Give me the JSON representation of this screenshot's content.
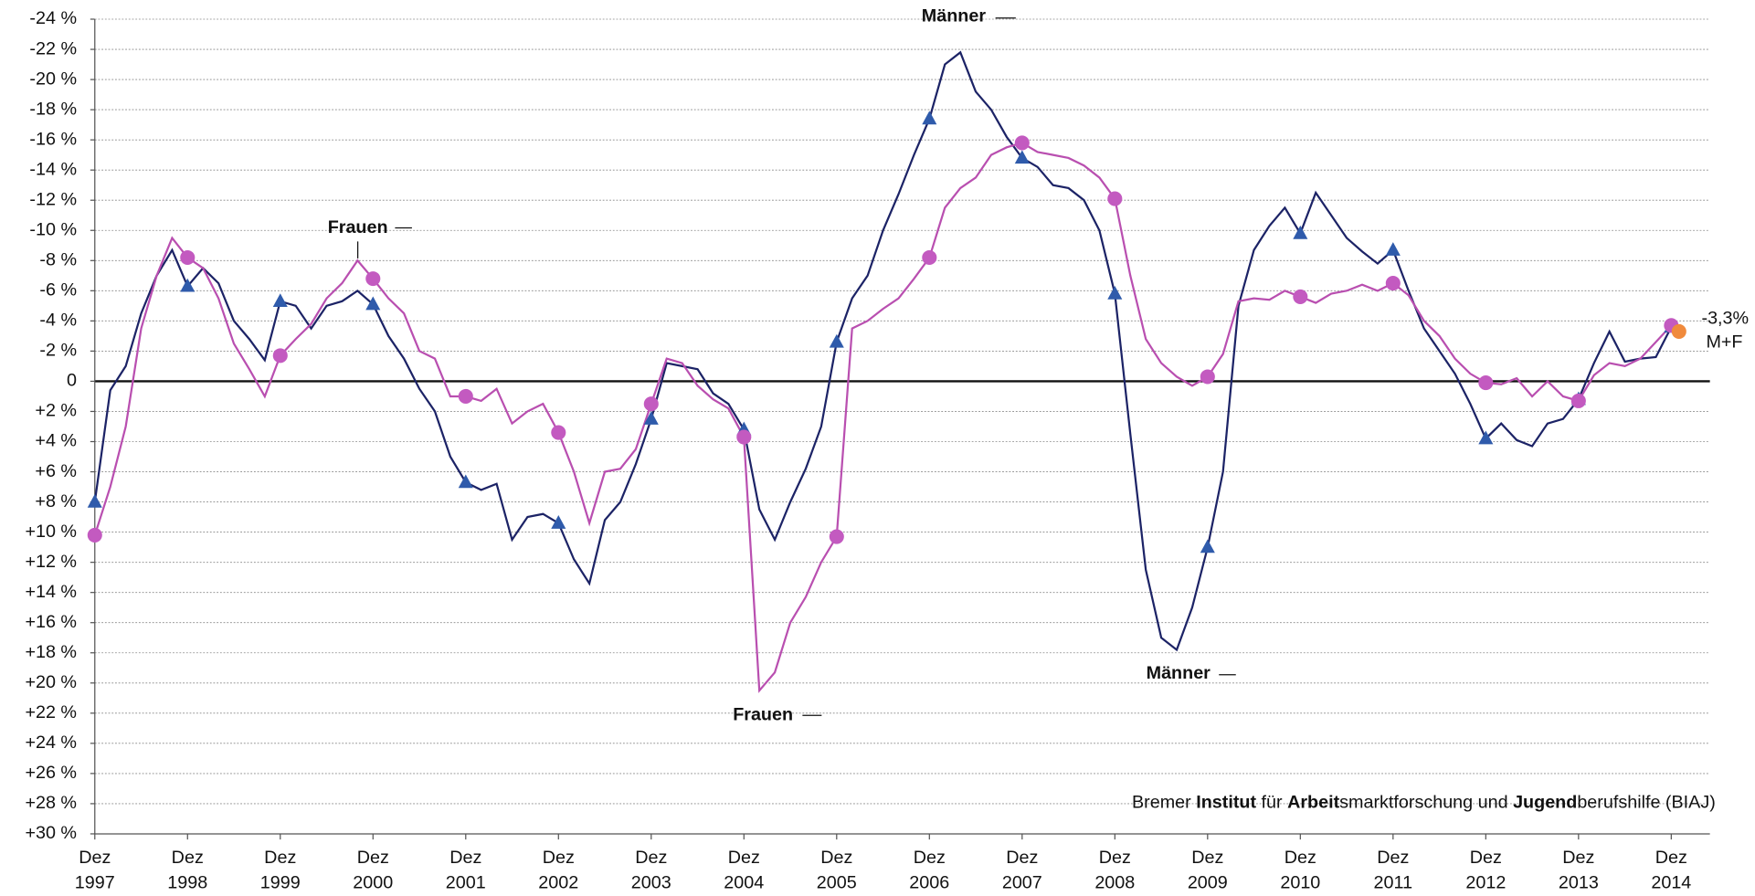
{
  "chart_data": {
    "type": "line",
    "y_inverted": true,
    "ylim": [
      -24,
      30
    ],
    "yticks": [
      {
        "value": -24,
        "label": "-24 %"
      },
      {
        "value": -22,
        "label": "-22 %"
      },
      {
        "value": -20,
        "label": "-20 %"
      },
      {
        "value": -18,
        "label": "-18 %"
      },
      {
        "value": -16,
        "label": "-16 %"
      },
      {
        "value": -14,
        "label": "-14 %"
      },
      {
        "value": -12,
        "label": "-12 %"
      },
      {
        "value": -10,
        "label": "-10 %"
      },
      {
        "value": -8,
        "label": "-8 %"
      },
      {
        "value": -6,
        "label": "-6 %"
      },
      {
        "value": -4,
        "label": "-4 %"
      },
      {
        "value": -2,
        "label": "-2 %"
      },
      0,
      {
        "value": 2,
        "label": "+2 %"
      },
      {
        "value": 4,
        "label": "+4 %"
      },
      {
        "value": 6,
        "label": "+6 %"
      },
      {
        "value": 8,
        "label": "+8 %"
      },
      {
        "value": 10,
        "label": "+10 %"
      },
      {
        "value": 12,
        "label": "+12 %"
      },
      {
        "value": 14,
        "label": "+14 %"
      },
      {
        "value": 16,
        "label": "+16 %"
      },
      {
        "value": 18,
        "label": "+18 %"
      },
      {
        "value": 20,
        "label": "+20 %"
      },
      {
        "value": 22,
        "label": "+22 %"
      },
      {
        "value": 24,
        "label": "+24 %"
      },
      {
        "value": 26,
        "label": "+26 %"
      },
      {
        "value": 28,
        "label": "+28 %"
      },
      {
        "value": 30,
        "label": "+30 %"
      }
    ],
    "grid": true,
    "xlim": [
      "1997-12",
      "2015-05"
    ],
    "xticks": [
      {
        "value": "1997-12",
        "label": "Dez 1997"
      },
      {
        "value": "1998-12",
        "label": "Dez 1998"
      },
      {
        "value": "1999-12",
        "label": "Dez 1999"
      },
      {
        "value": "2000-12",
        "label": "Dez 2000"
      },
      {
        "value": "2001-12",
        "label": "Dez 2001"
      },
      {
        "value": "2002-12",
        "label": "Dez 2002"
      },
      {
        "value": "2003-12",
        "label": "Dez 2003"
      },
      {
        "value": "2004-12",
        "label": "Dez 2004"
      },
      {
        "value": "2005-12",
        "label": "Dez 2005"
      },
      {
        "value": "2006-12",
        "label": "Dez 2006"
      },
      {
        "value": "2007-12",
        "label": "Dez 2007"
      },
      {
        "value": "2008-12",
        "label": "Dez 2008"
      },
      {
        "value": "2009-12",
        "label": "Dez 2009"
      },
      {
        "value": "2010-12",
        "label": "Dez 2010"
      },
      {
        "value": "2011-12",
        "label": "Dez 2011"
      },
      {
        "value": "2012-12",
        "label": "Dez 2012"
      },
      {
        "value": "2013-12",
        "label": "Dez 2013"
      },
      {
        "value": "2014-12",
        "label": "Dez 2014"
      }
    ],
    "x": [
      "1997-12",
      "1998-02",
      "1998-04",
      "1998-06",
      "1998-08",
      "1998-10",
      "1998-12",
      "1999-02",
      "1999-04",
      "1999-06",
      "1999-08",
      "1999-10",
      "1999-12",
      "2000-02",
      "2000-04",
      "2000-06",
      "2000-08",
      "2000-10",
      "2000-12",
      "2001-02",
      "2001-04",
      "2001-06",
      "2001-08",
      "2001-10",
      "2001-12",
      "2002-02",
      "2002-04",
      "2002-06",
      "2002-08",
      "2002-10",
      "2002-12",
      "2003-02",
      "2003-04",
      "2003-06",
      "2003-08",
      "2003-10",
      "2003-12",
      "2004-02",
      "2004-04",
      "2004-06",
      "2004-08",
      "2004-10",
      "2004-12",
      "2005-02",
      "2005-04",
      "2005-06",
      "2005-08",
      "2005-10",
      "2005-12",
      "2006-02",
      "2006-04",
      "2006-06",
      "2006-08",
      "2006-10",
      "2006-12",
      "2007-02",
      "2007-04",
      "2007-06",
      "2007-08",
      "2007-10",
      "2007-12",
      "2008-02",
      "2008-04",
      "2008-06",
      "2008-08",
      "2008-10",
      "2008-12",
      "2009-02",
      "2009-04",
      "2009-06",
      "2009-08",
      "2009-10",
      "2009-12",
      "2010-02",
      "2010-04",
      "2010-06",
      "2010-08",
      "2010-10",
      "2010-12",
      "2011-02",
      "2011-04",
      "2011-06",
      "2011-08",
      "2011-10",
      "2011-12",
      "2012-02",
      "2012-04",
      "2012-06",
      "2012-08",
      "2012-10",
      "2012-12",
      "2013-02",
      "2013-04",
      "2013-06",
      "2013-08",
      "2013-10",
      "2013-12",
      "2014-02",
      "2014-04",
      "2014-06",
      "2014-08",
      "2014-10",
      "2014-12"
    ],
    "series": [
      {
        "name": "Männer",
        "color": "#1c2366",
        "marker": "triangle",
        "marker_color": "#2f5bab",
        "values": [
          8.0,
          0.6,
          -1.0,
          -4.5,
          -7.0,
          -8.7,
          -6.3,
          -7.5,
          -6.5,
          -4.0,
          -2.8,
          -1.4,
          -5.3,
          -5.0,
          -3.5,
          -5.0,
          -5.3,
          -6.0,
          -5.1,
          -3.0,
          -1.5,
          0.5,
          2.0,
          5.0,
          6.7,
          7.2,
          6.8,
          10.5,
          9.0,
          8.8,
          9.4,
          11.8,
          13.4,
          9.2,
          8.0,
          5.5,
          2.5,
          -1.2,
          -1.0,
          -0.8,
          0.8,
          1.5,
          3.2,
          8.5,
          10.5,
          8.0,
          5.8,
          3.0,
          -2.6,
          -5.5,
          -7.0,
          -10.0,
          -12.4,
          -15.0,
          -17.4,
          -21.0,
          -21.8,
          -19.2,
          -18.0,
          -16.2,
          -14.8,
          -14.2,
          -13.0,
          -12.8,
          -12.0,
          -10.0,
          -5.8,
          3.5,
          12.5,
          17.0,
          17.8,
          15.0,
          11.0,
          6.0,
          -5.0,
          -8.7,
          -10.3,
          -11.5,
          -9.8,
          -12.5,
          -11.0,
          -9.5,
          -8.6,
          -7.8,
          -8.7,
          -6.0,
          -3.5,
          -2.0,
          -0.5,
          1.5,
          3.8,
          2.8,
          3.9,
          4.3,
          2.8,
          2.5,
          1.2,
          -1.2,
          -3.3,
          -1.3,
          -1.5,
          -1.6,
          -3.6
        ]
      },
      {
        "name": "Frauen",
        "color": "#b94fb0",
        "marker": "circle",
        "marker_color": "#c35ac0",
        "values": [
          10.2,
          7.0,
          3.0,
          -3.5,
          -7.0,
          -9.5,
          -8.2,
          -7.5,
          -5.5,
          -2.5,
          -0.8,
          1.0,
          -1.7,
          -2.8,
          -3.8,
          -5.5,
          -6.5,
          -8.0,
          -6.8,
          -5.5,
          -4.5,
          -2.0,
          -1.5,
          1.0,
          1.0,
          1.3,
          0.5,
          2.8,
          2.0,
          1.5,
          3.4,
          6.0,
          9.4,
          6.0,
          5.8,
          4.5,
          1.5,
          -1.5,
          -1.2,
          0.3,
          1.2,
          1.8,
          3.7,
          20.5,
          19.3,
          16.0,
          14.3,
          12.0,
          10.3,
          -3.5,
          -4.0,
          -4.8,
          -5.5,
          -6.8,
          -8.2,
          -11.5,
          -12.8,
          -13.5,
          -15.0,
          -15.5,
          -15.8,
          -15.2,
          -15.0,
          -14.8,
          -14.3,
          -13.5,
          -12.1,
          -7.0,
          -2.8,
          -1.2,
          -0.3,
          0.3,
          -0.3,
          -1.8,
          -5.3,
          -5.5,
          -5.4,
          -6.0,
          -5.6,
          -5.2,
          -5.8,
          -6.0,
          -6.4,
          -6.0,
          -6.5,
          -5.7,
          -4.0,
          -3.0,
          -1.5,
          -0.5,
          0.1,
          0.2,
          -0.2,
          1.0,
          0,
          1.0,
          1.3,
          -0.4,
          -1.2,
          -1.0,
          -1.5,
          -2.6,
          -3.7
        ]
      }
    ],
    "point": {
      "name": "M+F",
      "x": "2015-01",
      "value": -3.3,
      "value_label": "-3,3%",
      "color": "#f08a3c"
    },
    "annotations": [
      "Männer",
      "Frauen",
      "Männer",
      "Frauen"
    ],
    "source": [
      {
        "text": "Bremer ",
        "bold": false
      },
      {
        "text": "Institut",
        "bold": true
      },
      {
        "text": " für ",
        "bold": false
      },
      {
        "text": "Arbeit",
        "bold": true
      },
      {
        "text": "smarktforschung und ",
        "bold": false
      },
      {
        "text": "Jugend",
        "bold": true
      },
      {
        "text": "berufshilfe (BIAJ)",
        "bold": false
      }
    ]
  }
}
